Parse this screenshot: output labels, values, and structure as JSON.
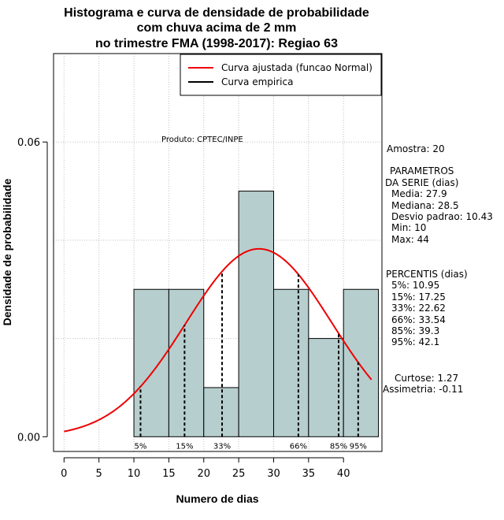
{
  "chart_data": {
    "type": "bar",
    "title_lines": [
      "Histograma e curva de densidade de probabilidade",
      "com chuva acima de 2 mm",
      "no trimestre FMA (1998-2017): Regiao 63"
    ],
    "xlabel": "Numero de dias",
    "ylabel": "Densidade de probabilidade",
    "xlim": [
      -1.5,
      45.5
    ],
    "ylim": [
      -0.003,
      0.078
    ],
    "xticks": [
      0,
      5,
      10,
      15,
      20,
      25,
      30,
      35,
      40
    ],
    "yticks": [
      0.0,
      0.06
    ],
    "ytick_labels": [
      "0.00",
      "0.06"
    ],
    "bins": [
      {
        "start": 10,
        "end": 15,
        "density": 0.03
      },
      {
        "start": 15,
        "end": 20,
        "density": 0.03
      },
      {
        "start": 20,
        "end": 25,
        "density": 0.01
      },
      {
        "start": 25,
        "end": 30,
        "density": 0.05
      },
      {
        "start": 30,
        "end": 35,
        "density": 0.03
      },
      {
        "start": 35,
        "end": 40,
        "density": 0.02
      },
      {
        "start": 40,
        "end": 45,
        "density": 0.03
      }
    ],
    "bar_color": "#b7cece",
    "normal_fit": {
      "mean": 27.9,
      "sd": 10.43,
      "x_range": [
        0,
        44
      ],
      "color": "#ee0000"
    },
    "percentile_lines": [
      {
        "label": "5%",
        "x": 10.95
      },
      {
        "label": "15%",
        "x": 17.25
      },
      {
        "label": "33%",
        "x": 22.62
      },
      {
        "label": "66%",
        "x": 33.54
      },
      {
        "label": "85%",
        "x": 39.3
      },
      {
        "label": "95%",
        "x": 42.1
      }
    ],
    "legend": [
      {
        "label": "Curva ajustada (funcao Normal)",
        "color": "#ee0000"
      },
      {
        "label": "Curva empirica",
        "color": "#000000"
      }
    ],
    "legend_position": "top-right",
    "grid": true
  },
  "annotation": "Produto: CPTEC/INPE",
  "stats": {
    "amostra": "Amostra: 20",
    "param_title1": "PARAMETROS",
    "param_title2": "DA SERIE (dias)",
    "media": "Media: 27.9",
    "mediana": "Mediana: 28.5",
    "desvio": "Desvio padrao: 10.43",
    "min": "Min: 10",
    "max": "Max: 44",
    "perc_title": "PERCENTIS (dias)",
    "p5": "5%: 10.95",
    "p15": "15%: 17.25",
    "p33": "33%: 22.62",
    "p66": "66%: 33.54",
    "p85": "85%: 39.3",
    "p95": "95%: 42.1",
    "curtose": "Curtose: 1.27",
    "assimetria": "Assimetria: -0.11"
  }
}
